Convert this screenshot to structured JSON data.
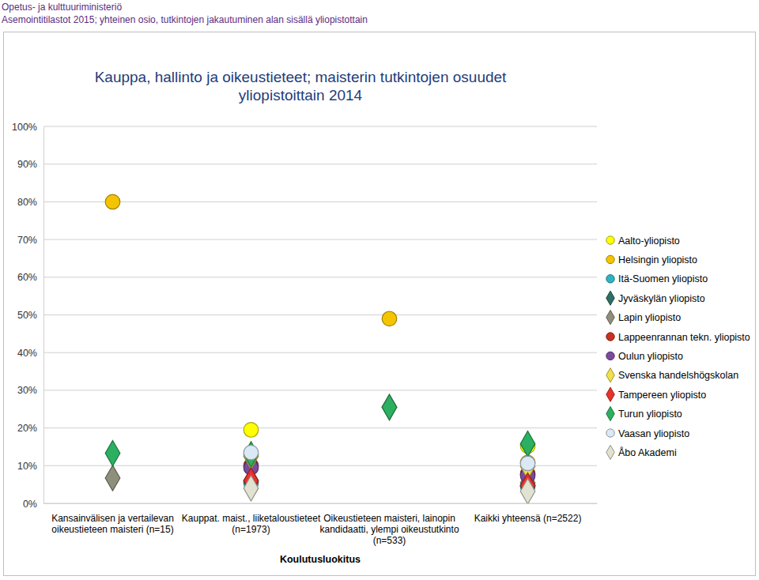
{
  "chart_data": {
    "type": "scatter",
    "title": "Kauppa, hallinto ja oikeustieteet; maisterin tutkintojen osuudet yliopistoittain 2014",
    "annotations": [
      "Opetus- ja kulttuuriministeriö",
      "Asemointitilastot 2015; yhteinen osio, tutkintojen jakautuminen alan sisällä yliopistottain"
    ],
    "xlabel": "Koulutusluokitus",
    "categories": [
      "Kansainvälisen ja vertailevan oikeustieteen maisteri (n=15)",
      "Kauppat. maist., liiketaloustieteet (n=1973)",
      "Oikeustieteen maisteri, lainopin kandidaatti, ylempi oikeustutkinto (n=533)",
      "Kaikki yhteensä (n=2522)"
    ],
    "ylim": [
      0,
      100
    ],
    "yticks": [
      {
        "value": 0,
        "label": "0%"
      },
      {
        "value": 10,
        "label": "10%"
      },
      {
        "value": 20,
        "label": "20%"
      },
      {
        "value": 30,
        "label": "30%"
      },
      {
        "value": 40,
        "label": "40%"
      },
      {
        "value": 50,
        "label": "50%"
      },
      {
        "value": 60,
        "label": "60%"
      },
      {
        "value": 70,
        "label": "70%"
      },
      {
        "value": 80,
        "label": "80%"
      },
      {
        "value": 90,
        "label": "90%"
      },
      {
        "value": 100,
        "label": "100%"
      }
    ],
    "grid": true,
    "legend": "right",
    "series": [
      {
        "name": "Aalto-yliopisto",
        "color": "#ffff00",
        "marker": "circle",
        "values": [
          null,
          19.5,
          null,
          15.2
        ]
      },
      {
        "name": "Helsingin yliopisto",
        "color": "#f5c400",
        "marker": "circle",
        "values": [
          80,
          null,
          49,
          10.8
        ]
      },
      {
        "name": "Itä-Suomen yliopisto",
        "color": "#2fb3c4",
        "marker": "circle",
        "values": [
          null,
          5.5,
          null,
          4.5
        ]
      },
      {
        "name": "Jyväskylän yliopisto",
        "color": "#2e6e63",
        "marker": "diamond",
        "values": [
          null,
          6,
          null,
          4.7
        ]
      },
      {
        "name": "Lapin yliopisto",
        "color": "#8f8f7c",
        "marker": "diamond",
        "values": [
          6.7,
          null,
          25.5,
          5.4
        ]
      },
      {
        "name": "Lappeenrannan tekn. yliopisto",
        "color": "#c8321e",
        "marker": "circle",
        "values": [
          null,
          10,
          null,
          7.8
        ]
      },
      {
        "name": "Oulun yliopisto",
        "color": "#7a4a9e",
        "marker": "circle",
        "values": [
          null,
          9.5,
          null,
          7.4
        ]
      },
      {
        "name": "Svenska handelshögskolan",
        "color": "#f3df4c",
        "marker": "diamond",
        "values": [
          null,
          12.5,
          null,
          9.8
        ]
      },
      {
        "name": "Tampereen yliopisto",
        "color": "#e8322a",
        "marker": "diamond",
        "values": [
          null,
          6,
          null,
          4.7
        ]
      },
      {
        "name": "Turun yliopisto",
        "color": "#2bb061",
        "marker": "diamond",
        "values": [
          13.3,
          13,
          25.5,
          15.8
        ]
      },
      {
        "name": "Vaasan yliopisto",
        "color": "#dbe9f6",
        "marker": "circle",
        "values": [
          null,
          13.5,
          null,
          10.6
        ]
      },
      {
        "name": "Åbo Akademi",
        "color": "#e2e2d2",
        "marker": "diamond",
        "values": [
          null,
          4,
          null,
          3.2
        ]
      }
    ]
  }
}
